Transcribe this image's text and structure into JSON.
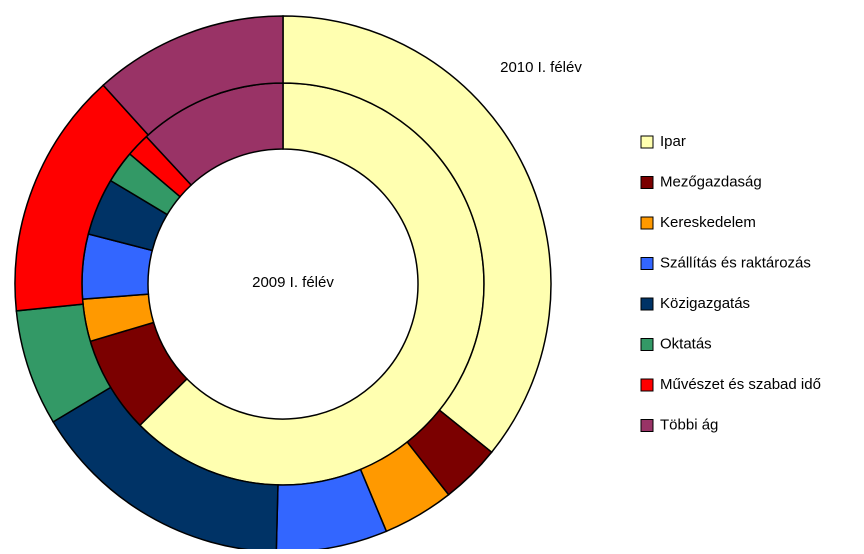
{
  "chart_data": {
    "type": "donut",
    "categories": [
      "Ipar",
      "Mezőgazdaság",
      "Kereskedelem",
      "Szállítás és raktározás",
      "Közigazgatás",
      "Oktatás",
      "Művészet és szabad idő",
      "Többi ág"
    ],
    "colors": [
      "#FFFFB0",
      "#7B0000",
      "#FF9900",
      "#3366FF",
      "#003366",
      "#339966",
      "#FF0000",
      "#993366"
    ],
    "series": [
      {
        "name": "2009 I. félév",
        "values": [
          62.6,
          7.8,
          3.4,
          5.2,
          4.6,
          2.6,
          1.9,
          11.9
        ]
      },
      {
        "name": "2010 I. félév",
        "values": [
          35.8,
          3.6,
          4.3,
          6.7,
          16,
          7,
          14.9,
          11.7
        ]
      }
    ]
  }
}
